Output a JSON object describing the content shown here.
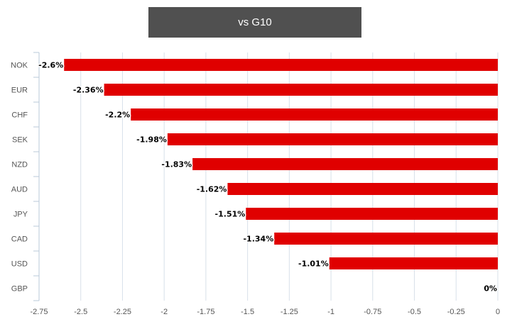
{
  "header": {
    "title": "vs G10"
  },
  "chart_data": {
    "type": "bar",
    "orientation": "horizontal",
    "title": "vs G10",
    "xlabel": "",
    "ylabel": "",
    "categories": [
      "NOK",
      "EUR",
      "CHF",
      "SEK",
      "NZD",
      "AUD",
      "JPY",
      "CAD",
      "USD",
      "GBP"
    ],
    "values": [
      -2.6,
      -2.36,
      -2.2,
      -1.98,
      -1.83,
      -1.62,
      -1.51,
      -1.34,
      -1.01,
      0
    ],
    "data_labels": [
      "-2.6%",
      "-2.36%",
      "-2.2%",
      "-1.98%",
      "-1.83%",
      "-1.62%",
      "-1.51%",
      "-1.34%",
      "-1.01%",
      "0%"
    ],
    "xlim": [
      -2.75,
      0
    ],
    "x_ticks": [
      -2.75,
      -2.5,
      -2.25,
      -2,
      -1.75,
      -1.5,
      -1.25,
      -1,
      -0.75,
      -0.5,
      -0.25,
      0
    ],
    "x_tick_labels": [
      "-2.75",
      "-2.5",
      "-2.25",
      "-2",
      "-1.75",
      "-1.5",
      "-1.25",
      "-1",
      "-0.75",
      "-0.5",
      "-0.25",
      "0"
    ],
    "grid": true,
    "legend": "none",
    "colors": {
      "bar": "#e00000",
      "grid": "#d8e0ea",
      "axis": "#b8c8d8"
    }
  }
}
